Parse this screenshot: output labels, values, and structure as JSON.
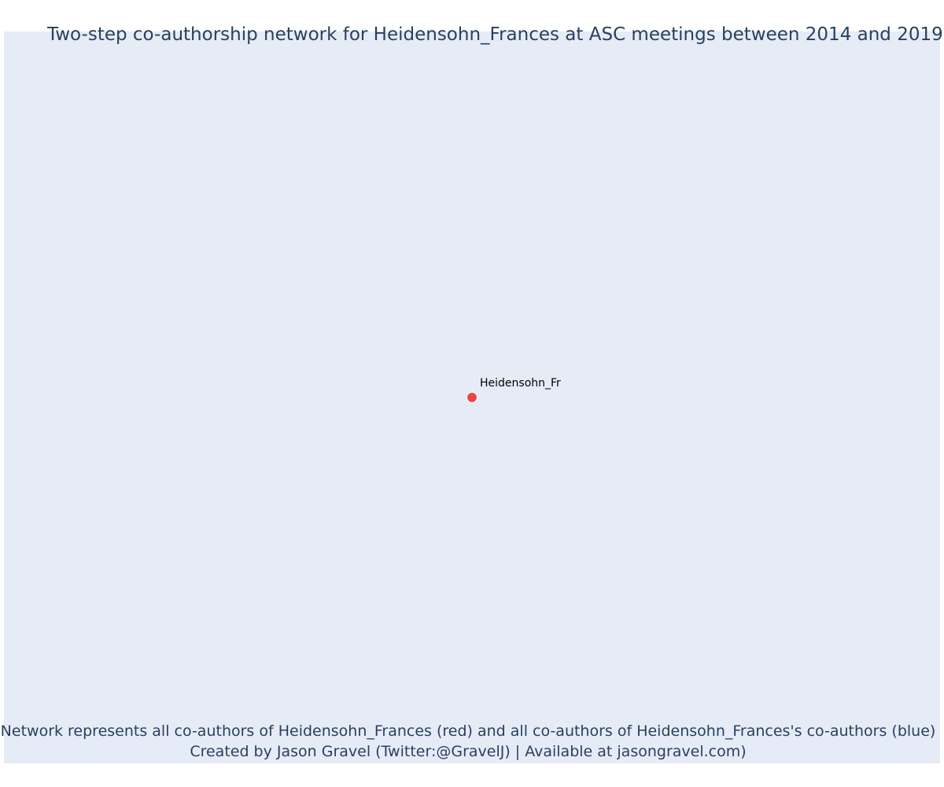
{
  "chart_data": {
    "type": "scatter",
    "title": "Two-step co-authorship network for Heidensohn_Frances at ASC meetings between 2014 and 2019",
    "nodes": [
      {
        "label": "Heidensohn_Fr",
        "x": 0,
        "y": 0,
        "color": "#ef4444",
        "group": "focal"
      }
    ],
    "edges": [],
    "xlim": [
      -1,
      1
    ],
    "ylim": [
      -1,
      1
    ],
    "grid": false,
    "legend": "none",
    "annotations": [
      "Network represents all co-authors of Heidensohn_Frances (red) and all co-authors of Heidensohn_Frances's co-authors (blue)",
      "Created by Jason Gravel (Twitter:@GravelJ) | Available at jasongravel.com)"
    ]
  },
  "colors": {
    "plot_background": "#e5ecf6",
    "title_text": "#2a3f5f",
    "focal_node": "#ef4444"
  }
}
